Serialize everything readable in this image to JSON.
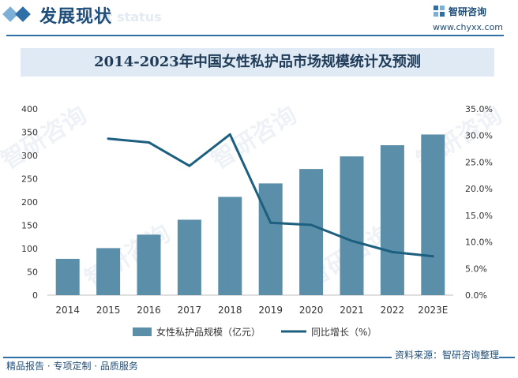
{
  "header": {
    "section_title": "发展现状",
    "section_subtitle": "ment status",
    "logo_name": "智研咨询",
    "logo_url": "www.chyxx.com"
  },
  "chart_data": {
    "type": "bar+line",
    "title": "2014-2023年中国女性私护品市场规模统计及预测",
    "categories": [
      "2014",
      "2015",
      "2016",
      "2017",
      "2018",
      "2019",
      "2020",
      "2021",
      "2022",
      "2023E"
    ],
    "series": [
      {
        "name": "女性私护品规模（亿元）",
        "type": "bar",
        "axis": "left",
        "values": [
          78,
          101,
          130,
          162,
          211,
          240,
          271,
          298,
          322,
          345
        ]
      },
      {
        "name": "同比增长（%）",
        "type": "line",
        "axis": "right",
        "values": [
          null,
          29.4,
          28.7,
          24.3,
          30.2,
          13.6,
          13.2,
          10.2,
          8.1,
          7.3
        ]
      }
    ],
    "left_axis": {
      "ylim": [
        0,
        400
      ],
      "ticks": [
        "0",
        "50",
        "100",
        "150",
        "200",
        "250",
        "300",
        "350",
        "400"
      ]
    },
    "right_axis": {
      "ylim": [
        0,
        35
      ],
      "ticks": [
        "0.0%",
        "5.0%",
        "10.0%",
        "15.0%",
        "20.0%",
        "25.0%",
        "30.0%",
        "35.0%"
      ]
    },
    "legend_position": "bottom",
    "colors": {
      "bar": "#5b8ea8",
      "line": "#1c5f7f"
    }
  },
  "watermark": {
    "text": "智研咨询"
  },
  "footer": {
    "left_text": "精品报告 · 专项定制 · 品质服务",
    "source": "资料来源：智研咨询整理"
  }
}
